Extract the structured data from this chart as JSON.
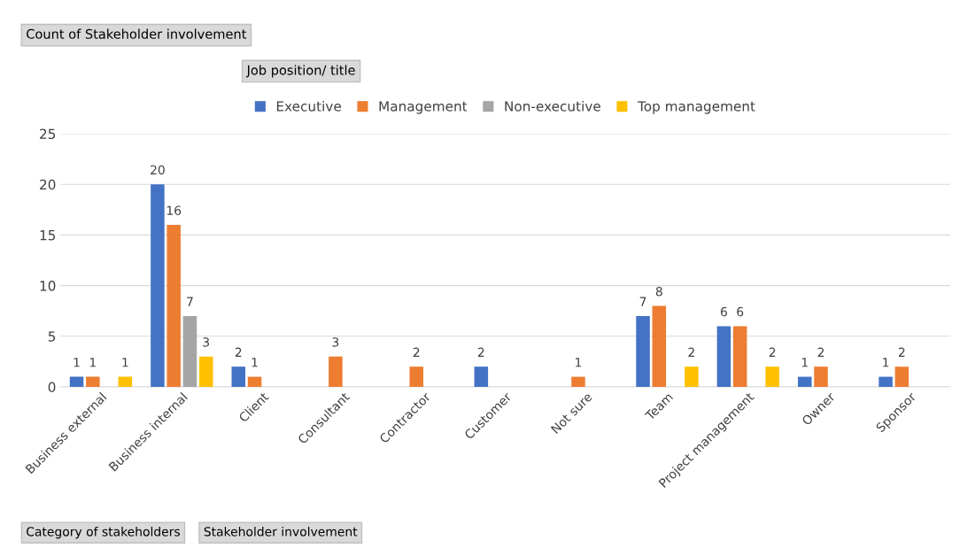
{
  "chart_data": {
    "type": "bar",
    "title": "Count of Stakeholder involvement",
    "legend_title": "Job position/ title",
    "categories": [
      "Business external",
      "Business internal",
      "Client",
      "Consultant",
      "Contractor",
      "Customer",
      "Not sure",
      "Team",
      "Project management",
      "Owner",
      "Sponsor"
    ],
    "series": [
      {
        "name": "Executive",
        "color": "#4472c4",
        "values": [
          1,
          20,
          2,
          null,
          null,
          2,
          null,
          7,
          6,
          1,
          1
        ]
      },
      {
        "name": "Management",
        "color": "#ed7d31",
        "values": [
          1,
          16,
          1,
          3,
          2,
          null,
          1,
          8,
          6,
          2,
          2
        ]
      },
      {
        "name": "Non-executive",
        "color": "#a5a5a5",
        "values": [
          null,
          7,
          null,
          null,
          null,
          null,
          null,
          null,
          null,
          null,
          null
        ]
      },
      {
        "name": "Top management",
        "color": "#ffc000",
        "values": [
          1,
          3,
          null,
          null,
          null,
          null,
          null,
          2,
          2,
          null,
          null
        ]
      }
    ],
    "ylim": [
      0,
      25
    ],
    "yticks": [
      0,
      5,
      10,
      15,
      20,
      25
    ],
    "grid": "y",
    "legend": "top",
    "data_labels": true,
    "annotations": [
      "Category of stakeholders",
      "Stakeholder involvement"
    ]
  }
}
